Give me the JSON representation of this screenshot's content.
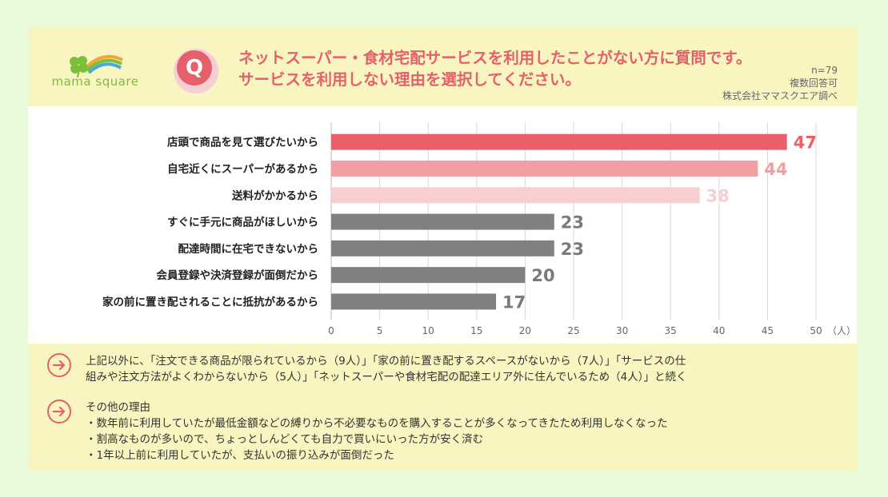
{
  "header": {
    "logo_text": "mama square",
    "q_label": "Q",
    "title_line1": "ネットスーパー・食材宅配サービスを利用したことがない方に質問です。",
    "title_line2": "サービスを利用しない理由を選択してください。",
    "meta_n": "n=79",
    "meta_multi": "複数回答可",
    "meta_source": "株式会社ママスクエア調べ"
  },
  "colors": {
    "accent": "#e4606b",
    "bar_top1": "#e8606a",
    "bar_top2": "#f29ea3",
    "bar_top3": "#f8cfd1",
    "bar_rest": "#808080",
    "label_rest": "#7a7a7a",
    "header_bg": "#f8f5c0",
    "page_bg": "#eafbdc"
  },
  "chart_data": {
    "type": "bar",
    "orientation": "horizontal",
    "categories": [
      "店頭で商品を見て選びたいから",
      "自宅近くにスーパーがあるから",
      "送料がかかるから",
      "すぐに手元に商品がほしいから",
      "配達時間に在宅できないから",
      "会員登録や決済登録が面倒だから",
      "家の前に置き配されることに抵抗があるから"
    ],
    "values": [
      47,
      44,
      38,
      23,
      23,
      20,
      17
    ],
    "xlim": [
      0,
      50
    ],
    "xticks": [
      0,
      5,
      10,
      15,
      20,
      25,
      30,
      35,
      40,
      45,
      50
    ],
    "unit_label": "（人）",
    "grid": true
  },
  "footer": {
    "note1_lines": [
      "上記以外に、「注文できる商品が限られているから（9人）」「家の前に置き配するスペースがないから（7人）」「サービスの仕",
      "組みや注文方法がよくわからないから（5人）」「ネットスーパーや食材宅配の配達エリア外に住んでいるため（4人）」と続く"
    ],
    "note2_title": "その他の理由",
    "note2_items": [
      "・数年前に利用していたが最低金額などの縛りから不必要なものを購入することが多くなってきたため利用しなくなった",
      "・割高なものが多いので、ちょっとしんどくても自力で買いにいった方が安く済む",
      "・1年以上前に利用していたが、支払いの振り込みが面倒だった"
    ]
  }
}
